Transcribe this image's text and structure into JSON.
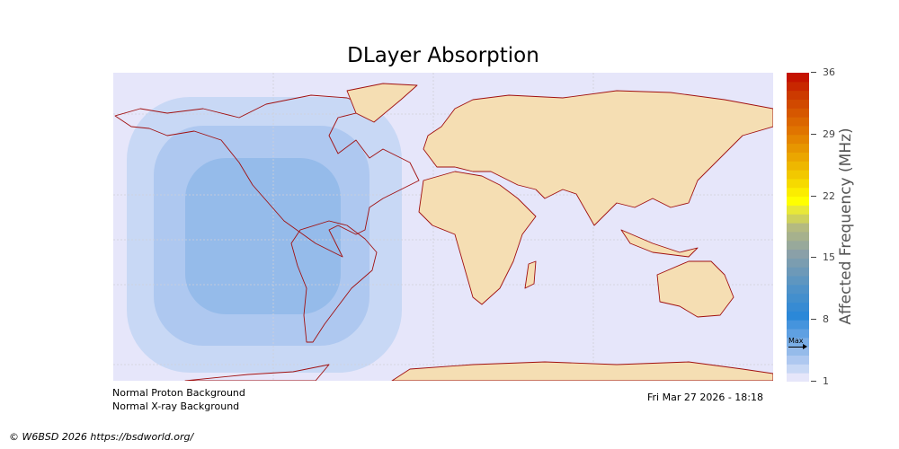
{
  "title": "DLayer Absorption",
  "colorbar": {
    "label": "Affected Frequency (MHz)",
    "min": 1,
    "max": 36,
    "ticks": [
      "1",
      "8",
      "15",
      "22",
      "29",
      "36"
    ],
    "max_marker_label": "Max",
    "max_marker_value": 5,
    "color_stops": [
      {
        "v": 1,
        "c": "#e6e6fa"
      },
      {
        "v": 2,
        "c": "#c8d8f5"
      },
      {
        "v": 3,
        "c": "#aec8f0"
      },
      {
        "v": 4,
        "c": "#95bbea"
      },
      {
        "v": 6,
        "c": "#5fa0e2"
      },
      {
        "v": 8,
        "c": "#2b88d8"
      },
      {
        "v": 11,
        "c": "#4f92c8"
      },
      {
        "v": 15,
        "c": "#8aa0a8"
      },
      {
        "v": 18,
        "c": "#b4ba80"
      },
      {
        "v": 20,
        "c": "#e8e838"
      },
      {
        "v": 21,
        "c": "#ffff00"
      },
      {
        "v": 24,
        "c": "#f2c800"
      },
      {
        "v": 29,
        "c": "#e07400"
      },
      {
        "v": 33,
        "c": "#cc3a00"
      },
      {
        "v": 36,
        "c": "#c00000"
      }
    ]
  },
  "map": {
    "ocean_color": "#e6e6fa",
    "land_color": "#f5deb3",
    "coast_color": "#a01010",
    "absorption_levels_mhz": [
      2,
      3,
      4
    ]
  },
  "status": {
    "proton": "Normal Proton Background",
    "xray": "Normal X-ray Background",
    "timestamp": "Fri Mar 27 2026 - 18:18"
  },
  "footer": {
    "copyright": "© W6BSD 2026 https://bsdworld.org/"
  }
}
